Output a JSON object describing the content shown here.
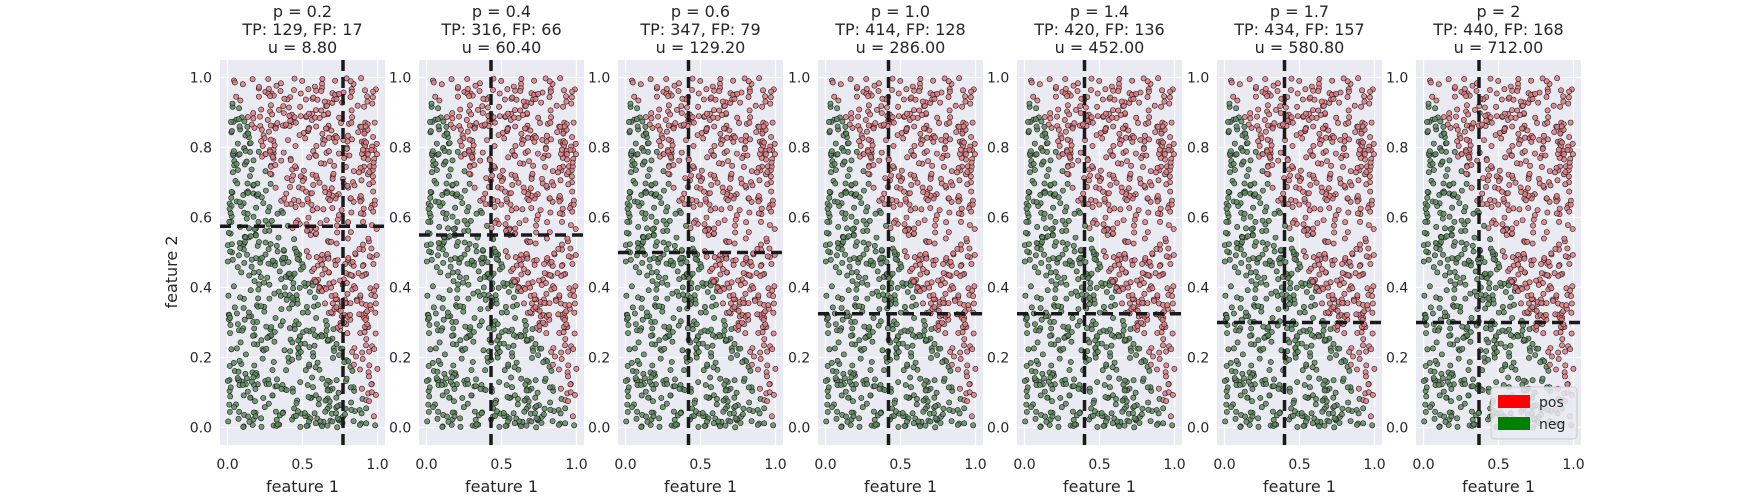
{
  "chart_data": {
    "type": "scatter",
    "ylabel": "feature 2",
    "xlabel": "feature 1",
    "xlim": [
      -0.05,
      1.05
    ],
    "ylim": [
      -0.05,
      1.05
    ],
    "x_ticks": [
      "0.0",
      "0.5",
      "1.0"
    ],
    "x_tick_values": [
      0,
      0.5,
      1.0
    ],
    "y_ticks": [
      "0.0",
      "0.2",
      "0.4",
      "0.6",
      "0.8",
      "1.0"
    ],
    "y_tick_values": [
      0,
      0.2,
      0.4,
      0.6,
      0.8,
      1.0
    ],
    "grid": true,
    "legend": {
      "placement": "lower-right of last panel",
      "entries": [
        {
          "label": "pos",
          "color": "#ff0000"
        },
        {
          "label": "neg",
          "color": "#008000"
        }
      ]
    },
    "colors": {
      "pos_marker": "#e07a80",
      "neg_marker": "#5e8c5e",
      "marker_edge": "#1a1a1a",
      "threshold_line": "#1a1a1a",
      "axes_bg": "#eaeaf2"
    },
    "points_per_panel": 1000,
    "panels": [
      {
        "title_lines": [
          "p = 0.2",
          "TP: 129, FP: 17",
          "u = 8.80"
        ],
        "threshold_x": 0.77,
        "threshold_y": 0.575
      },
      {
        "title_lines": [
          "p = 0.4",
          "TP: 316, FP: 66",
          "u = 60.40"
        ],
        "threshold_x": 0.43,
        "threshold_y": 0.55
      },
      {
        "title_lines": [
          "p = 0.6",
          "TP: 347, FP: 79",
          "u = 129.20"
        ],
        "threshold_x": 0.42,
        "threshold_y": 0.5
      },
      {
        "title_lines": [
          "p = 1.0",
          "TP: 414, FP: 128",
          "u = 286.00"
        ],
        "threshold_x": 0.42,
        "threshold_y": 0.325
      },
      {
        "title_lines": [
          "p = 1.4",
          "TP: 420, FP: 136",
          "u = 452.00"
        ],
        "threshold_x": 0.4,
        "threshold_y": 0.325
      },
      {
        "title_lines": [
          "p = 1.7",
          "TP: 434, FP: 157",
          "u = 580.80"
        ],
        "threshold_x": 0.4,
        "threshold_y": 0.3
      },
      {
        "title_lines": [
          "p = 2",
          "TP: 440, FP: 168",
          "u = 712.00"
        ],
        "threshold_x": 0.37,
        "threshold_y": 0.3
      }
    ]
  }
}
